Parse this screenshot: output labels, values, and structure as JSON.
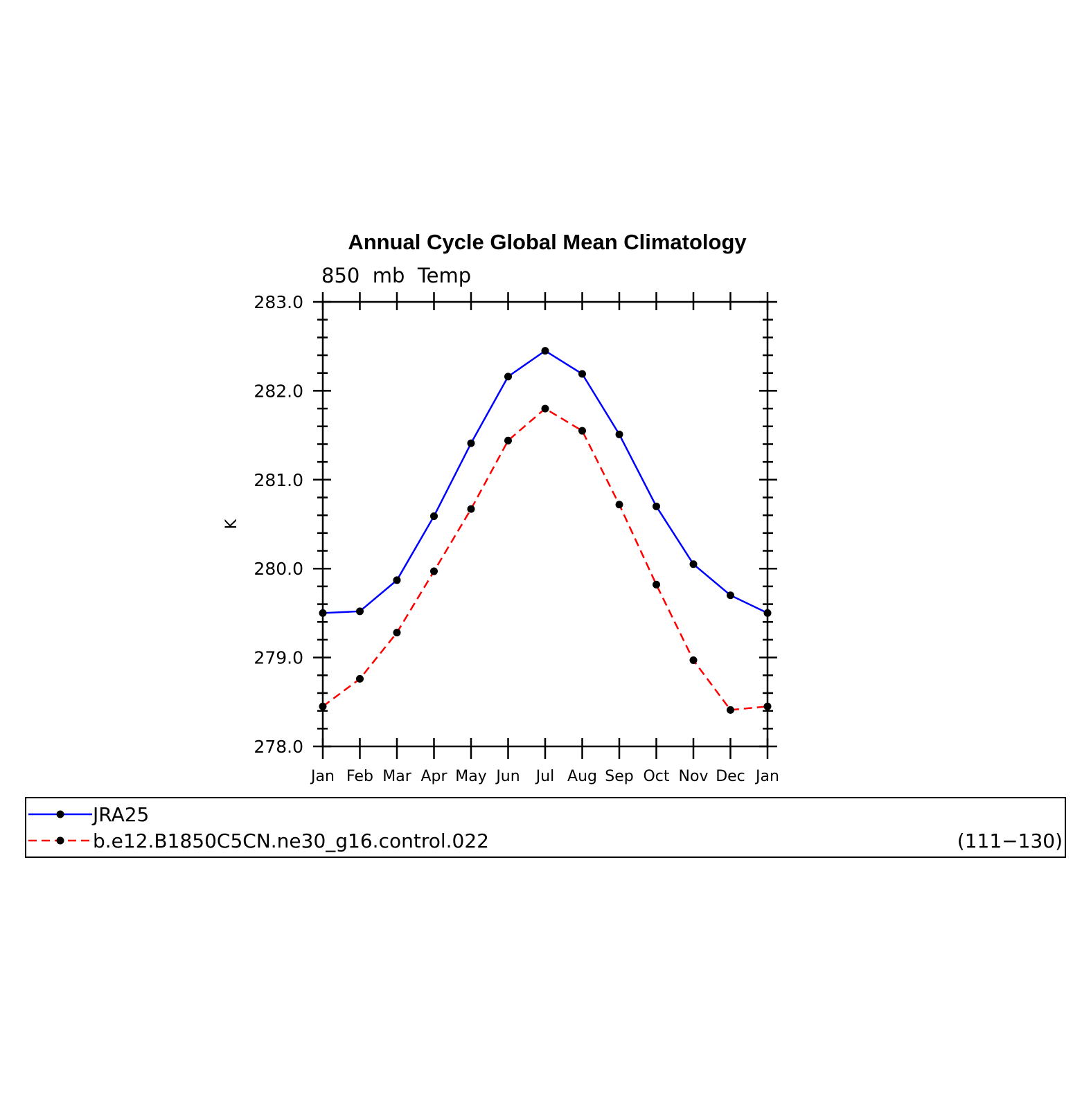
{
  "chart_data": {
    "type": "line",
    "title": "Annual Cycle Global Mean Climatology",
    "subtitle": "850  mb  Temp",
    "ylabel": "K",
    "xlabel": "",
    "categories": [
      "Jan",
      "Feb",
      "Mar",
      "Apr",
      "May",
      "Jun",
      "Jul",
      "Aug",
      "Sep",
      "Oct",
      "Nov",
      "Dec",
      "Jan"
    ],
    "ylim": [
      278.0,
      283.0
    ],
    "ytick_labels": [
      "278.0",
      "279.0",
      "280.0",
      "281.0",
      "282.0",
      "283.0"
    ],
    "grid": false,
    "legend_position": "bottom",
    "series": [
      {
        "name": "JRA25",
        "color": "#0000ff",
        "line_style": "solid",
        "marker": "filled-circle",
        "values": [
          279.5,
          279.52,
          279.87,
          280.59,
          281.41,
          282.16,
          282.45,
          282.19,
          281.51,
          280.7,
          280.05,
          279.7,
          279.5
        ]
      },
      {
        "name": "b.e12.B1850C5CN.ne30_g16.control.022",
        "color": "#ff0000",
        "line_style": "dashed",
        "marker": "filled-circle",
        "annotation": "(111−130)",
        "values": [
          278.45,
          278.76,
          279.28,
          279.97,
          280.67,
          281.44,
          281.8,
          281.55,
          280.72,
          279.82,
          278.97,
          278.41,
          278.45
        ]
      }
    ]
  }
}
